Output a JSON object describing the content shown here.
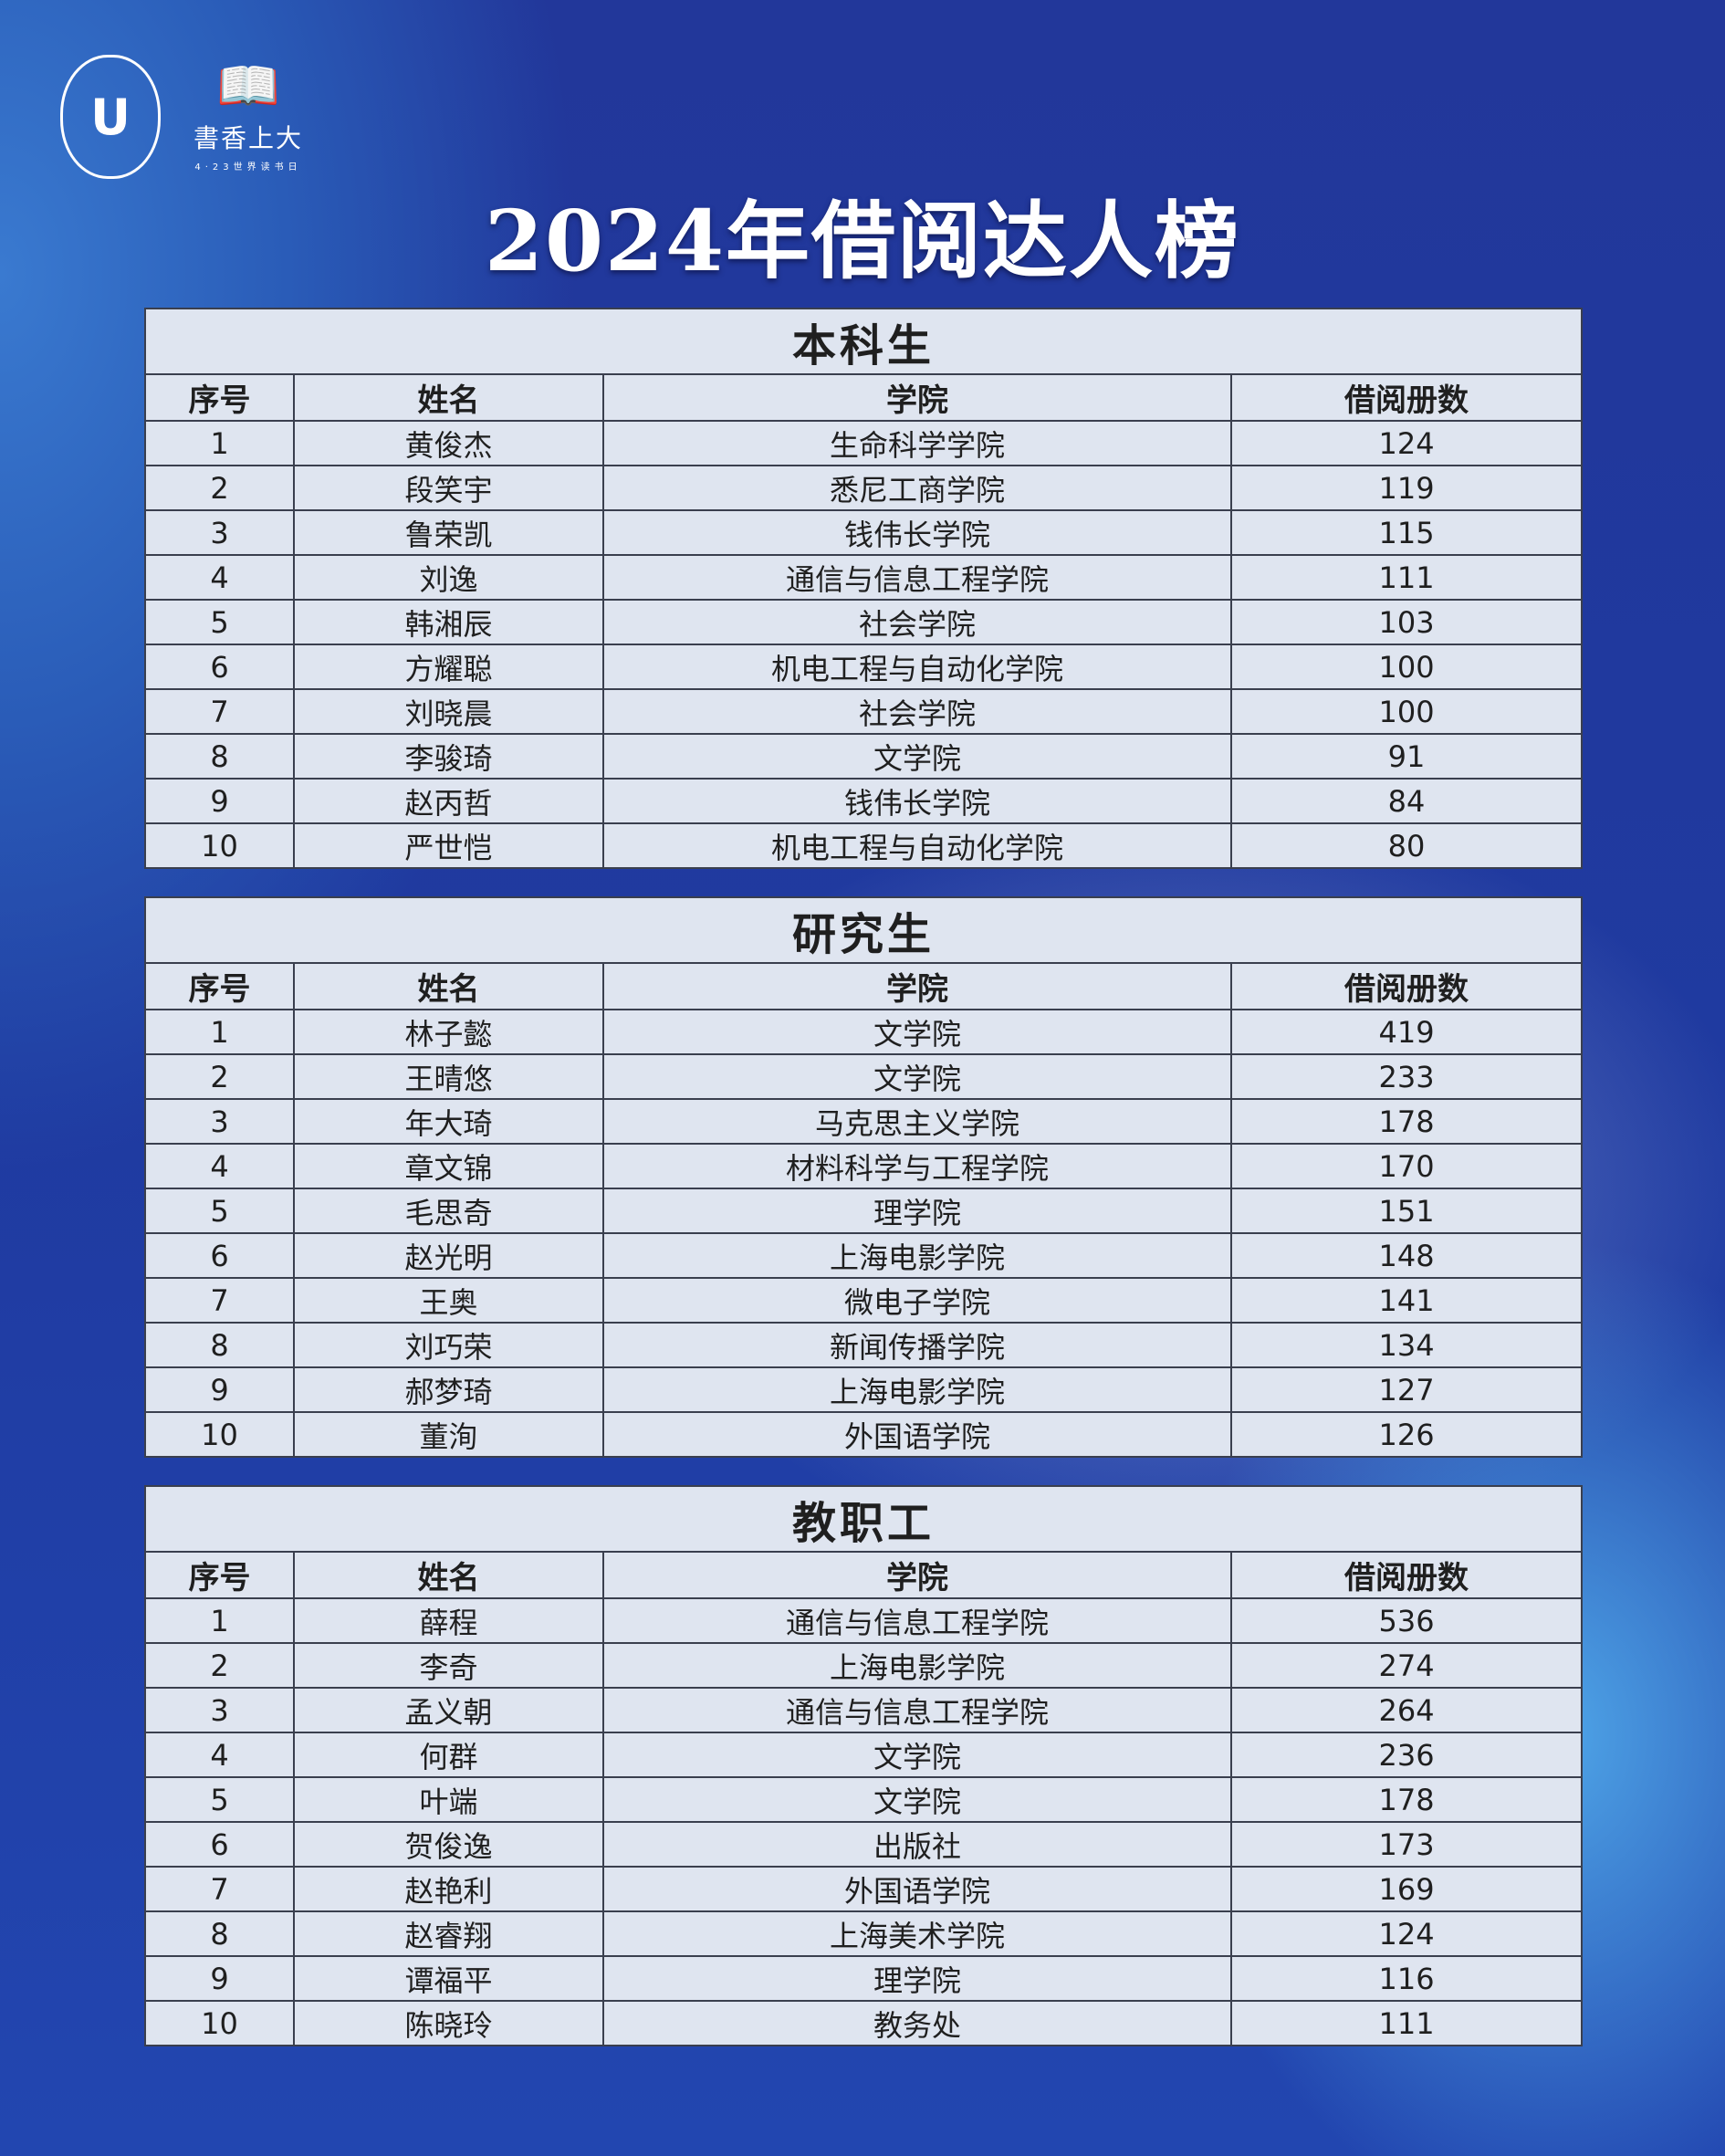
{
  "logos": {
    "university": "SHANGHAI UNIVERSITY 上海大学",
    "reading_title": "書香上大",
    "reading_sub": "4·23世界读书日"
  },
  "title": "2024年借阅达人榜",
  "columns": [
    "序号",
    "姓名",
    "学院",
    "借阅册数"
  ],
  "tables": [
    {
      "caption": "本科生",
      "rows": [
        [
          "1",
          "黄俊杰",
          "生命科学学院",
          "124"
        ],
        [
          "2",
          "段笑宇",
          "悉尼工商学院",
          "119"
        ],
        [
          "3",
          "鲁荣凯",
          "钱伟长学院",
          "115"
        ],
        [
          "4",
          "刘逸",
          "通信与信息工程学院",
          "111"
        ],
        [
          "5",
          "韩湘辰",
          "社会学院",
          "103"
        ],
        [
          "6",
          "方耀聪",
          "机电工程与自动化学院",
          "100"
        ],
        [
          "7",
          "刘晓晨",
          "社会学院",
          "100"
        ],
        [
          "8",
          "李骏琦",
          "文学院",
          "91"
        ],
        [
          "9",
          "赵丙哲",
          "钱伟长学院",
          "84"
        ],
        [
          "10",
          "严世恺",
          "机电工程与自动化学院",
          "80"
        ]
      ]
    },
    {
      "caption": "研究生",
      "rows": [
        [
          "1",
          "林子懿",
          "文学院",
          "419"
        ],
        [
          "2",
          "王晴悠",
          "文学院",
          "233"
        ],
        [
          "3",
          "年大琦",
          "马克思主义学院",
          "178"
        ],
        [
          "4",
          "章文锦",
          "材料科学与工程学院",
          "170"
        ],
        [
          "5",
          "毛思奇",
          "理学院",
          "151"
        ],
        [
          "6",
          "赵光明",
          "上海电影学院",
          "148"
        ],
        [
          "7",
          "王奥",
          "微电子学院",
          "141"
        ],
        [
          "8",
          "刘巧荣",
          "新闻传播学院",
          "134"
        ],
        [
          "9",
          "郝梦琦",
          "上海电影学院",
          "127"
        ],
        [
          "10",
          "董洵",
          "外国语学院",
          "126"
        ]
      ]
    },
    {
      "caption": "教职工",
      "rows": [
        [
          "1",
          "薛程",
          "通信与信息工程学院",
          "536"
        ],
        [
          "2",
          "李奇",
          "上海电影学院",
          "274"
        ],
        [
          "3",
          "孟义朝",
          "通信与信息工程学院",
          "264"
        ],
        [
          "4",
          "何群",
          "文学院",
          "236"
        ],
        [
          "5",
          "叶端",
          "文学院",
          "178"
        ],
        [
          "6",
          "贺俊逸",
          "出版社",
          "173"
        ],
        [
          "7",
          "赵艳利",
          "外国语学院",
          "169"
        ],
        [
          "8",
          "赵睿翔",
          "上海美术学院",
          "124"
        ],
        [
          "9",
          "谭福平",
          "理学院",
          "116"
        ],
        [
          "10",
          "陈晓玲",
          "教务处",
          "111"
        ]
      ]
    }
  ]
}
